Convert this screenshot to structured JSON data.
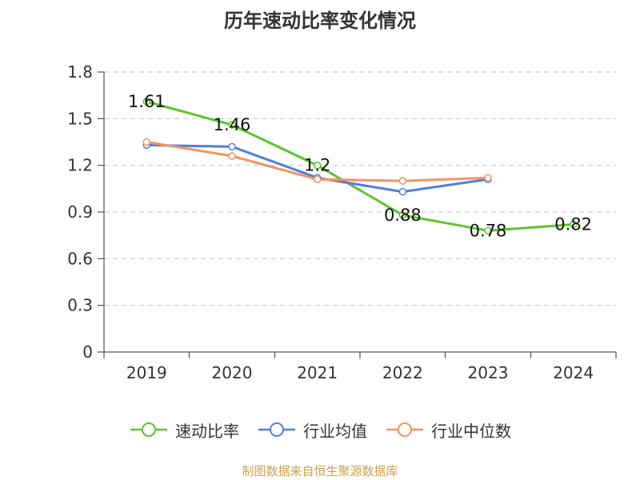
{
  "title": "历年速动比率变化情况",
  "source": "制图数据来自恒生聚源数据库",
  "chart_data": {
    "type": "line",
    "title": "历年速动比率变化情况",
    "categories": [
      "2019",
      "2020",
      "2021",
      "2022",
      "2023",
      "2024"
    ],
    "ylim": [
      0,
      1.8
    ],
    "yticks": [
      "0",
      "0.3",
      "0.6",
      "0.9",
      "1.2",
      "1.5",
      "1.8"
    ],
    "grid": true,
    "legend_position": "bottom",
    "series": [
      {
        "name": "速动比率",
        "color": "#5cc52d",
        "values": [
          1.61,
          1.46,
          1.2,
          0.88,
          0.78,
          0.82
        ],
        "labels": [
          "1.61",
          "1.46",
          "1.2",
          "0.88",
          "0.78",
          "0.82"
        ]
      },
      {
        "name": "行业均值",
        "color": "#4f7fde",
        "values": [
          1.33,
          1.32,
          1.12,
          1.03,
          1.11,
          null
        ]
      },
      {
        "name": "行业中位数",
        "color": "#f5925f",
        "values": [
          1.35,
          1.26,
          1.11,
          1.1,
          1.12,
          null
        ]
      }
    ]
  }
}
